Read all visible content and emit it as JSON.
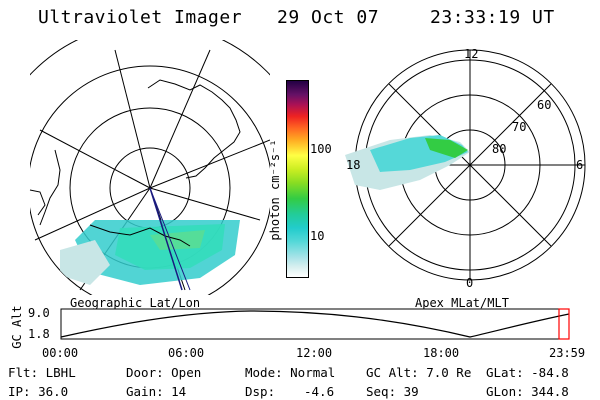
{
  "header": {
    "title": "Ultraviolet Imager",
    "date": "29 Oct 07",
    "time": "23:33:19 UT"
  },
  "left_panel": {
    "label": "Geographic Lat/Lon"
  },
  "right_panel": {
    "label": "Apex MLat/MLT",
    "mlt_labels": {
      "top": "12",
      "left": "18",
      "right": "6",
      "bottom": "0"
    },
    "lat_labels": [
      "80",
      "70",
      "60"
    ]
  },
  "colorbar": {
    "unit_label": "photon cm⁻²s⁻¹",
    "ticks": [
      "100",
      "10"
    ]
  },
  "altitude_plot": {
    "ylabel": "GC Alt",
    "y_ticks": [
      "9.0",
      "1.8"
    ],
    "x_ticks": [
      "00:00",
      "06:00",
      "12:00",
      "18:00",
      "23:59"
    ],
    "marker_color": "#ff0000"
  },
  "info": {
    "row1": {
      "flt": "Flt: LBHL",
      "door": "Door: Open",
      "mode": "Mode: Normal",
      "gcalt": "GC Alt: 7.0 Re",
      "glat": "GLat: -84.8"
    },
    "row2": {
      "ip": "IP: 36.0",
      "gain": "Gain: 14",
      "dsp_label": "Dsp:",
      "dsp_value": "-4.6",
      "seq": "Seq: 39",
      "glon": "GLon: 344.8"
    }
  },
  "colors": {
    "aurora_bright": "#22cc22",
    "aurora_mid": "#33cccc",
    "aurora_low": "#c8e6e6",
    "track": "#1a1a80"
  }
}
